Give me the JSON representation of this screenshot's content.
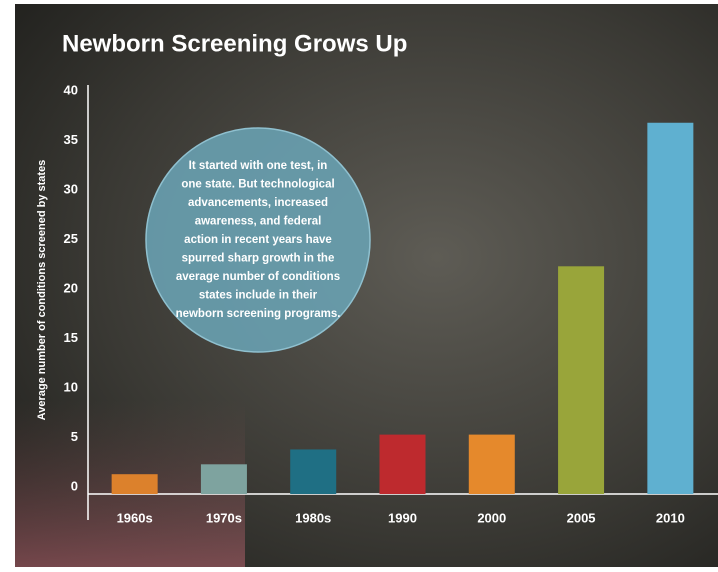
{
  "chart_data": {
    "type": "bar",
    "title": "Newborn Screening Grows Up",
    "y_label": "Average number of conditions screened by states",
    "annotation": [
      "It started with one test, in",
      "one state. But technological",
      "advancements, increased",
      "awareness, and federal",
      "action in recent years have",
      "spurred sharp growth in the",
      "average number of conditions",
      "states include in their",
      "newborn screening programs."
    ],
    "categories": [
      "1960s",
      "1970s",
      "1980s",
      "1990",
      "2000",
      "2005",
      "2010"
    ],
    "values": [
      2,
      3,
      4.5,
      6,
      6,
      23,
      37.5
    ],
    "colors": [
      "#dc812c",
      "#7ea39f",
      "#1f6f84",
      "#be2a2e",
      "#e5892c",
      "#99a53a",
      "#5fb0d0"
    ],
    "ylim": [
      0,
      40
    ],
    "yticks": [
      0,
      5,
      10,
      15,
      20,
      25,
      30,
      35,
      40
    ]
  }
}
